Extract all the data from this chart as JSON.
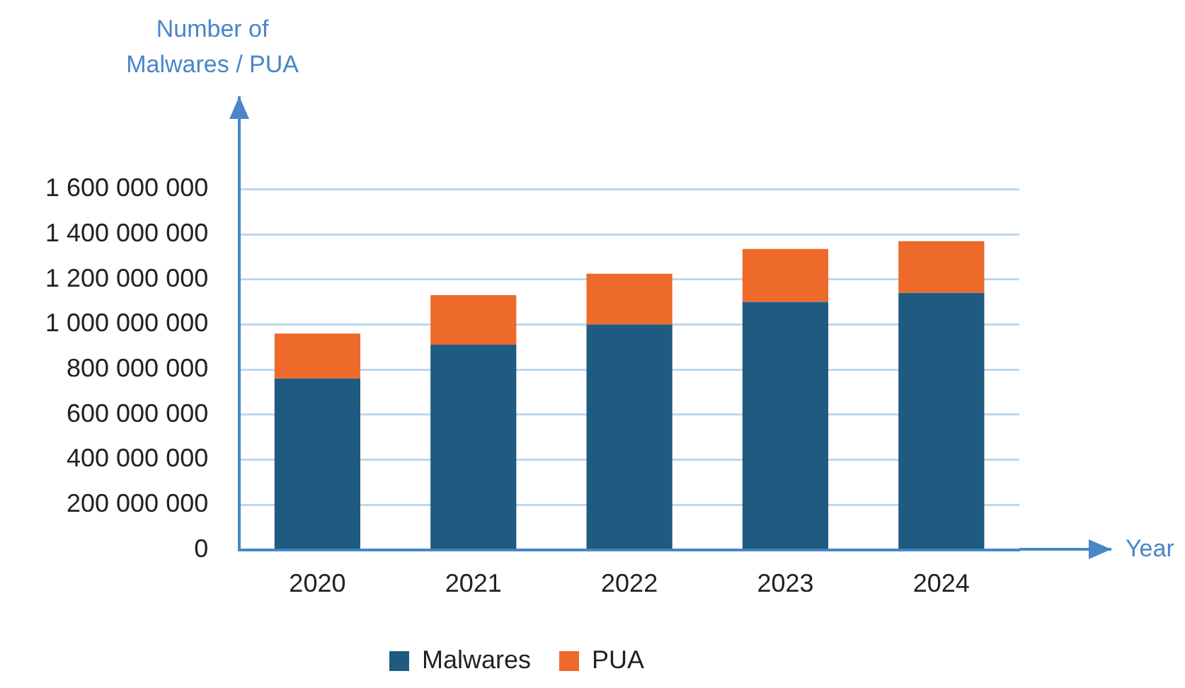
{
  "chart_data": {
    "type": "bar",
    "stacked": true,
    "xlabel": "Year",
    "ylabel": "Number of\nMalwares / PUA",
    "categories": [
      "2020",
      "2021",
      "2022",
      "2023",
      "2024"
    ],
    "series": [
      {
        "name": "Malwares",
        "color": "#1f5a80",
        "values": [
          760000000,
          910000000,
          1000000000,
          1100000000,
          1140000000
        ]
      },
      {
        "name": "PUA",
        "color": "#ee6a2a",
        "values": [
          200000000,
          220000000,
          225000000,
          235000000,
          230000000
        ]
      }
    ],
    "ylim": [
      0,
      1950000000
    ],
    "yticks": [
      {
        "value": 0,
        "label": "0"
      },
      {
        "value": 200000000,
        "label": "200 000 000"
      },
      {
        "value": 400000000,
        "label": "400 000 000"
      },
      {
        "value": 600000000,
        "label": "600 000 000"
      },
      {
        "value": 800000000,
        "label": "800 000 000"
      },
      {
        "value": 1000000000,
        "label": "1 000 000 000"
      },
      {
        "value": 1200000000,
        "label": "1 200 000 000"
      },
      {
        "value": 1400000000,
        "label": "1 400 000 000"
      },
      {
        "value": 1600000000,
        "label": "1 600 000 000"
      }
    ],
    "grid": "y",
    "legend": "bottom"
  }
}
